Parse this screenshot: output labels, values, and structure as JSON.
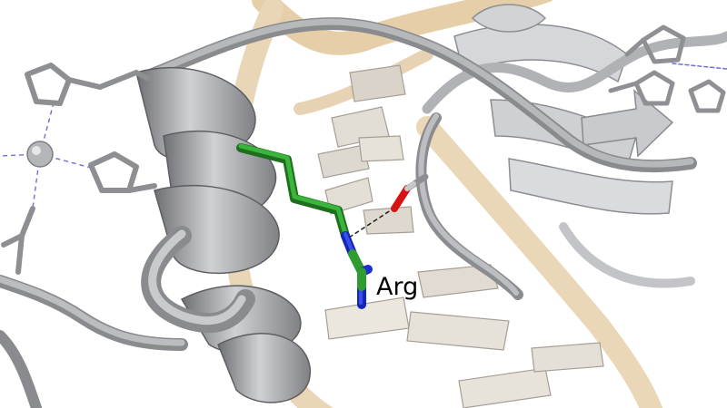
{
  "scene": {
    "colors": {
      "background": "#ffffff",
      "protein": "#a6a7aa",
      "protein_light": "#d4d5d8",
      "dna": "#e8d4b4",
      "dna_dark": "#cdb79a",
      "base_plate": "#e3ded6",
      "carbon": "#2e9c2e",
      "nitrogen": "#1d2fd0",
      "oxygen": "#e01010",
      "hbond": "#222222",
      "coordination": "#6f6fdc"
    },
    "residue_label": "Arg"
  }
}
